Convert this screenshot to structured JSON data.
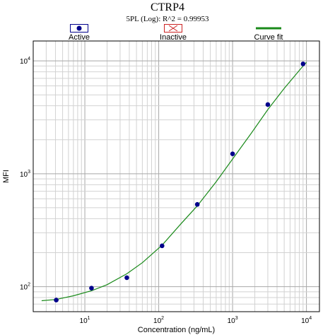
{
  "chart_data": {
    "type": "scatter",
    "title": "CTRP4",
    "subtitle": "5PL (Log): R^2 = 0.99953",
    "xlabel": "Concentration (ng/mL)",
    "ylabel": "MFI",
    "x_scale": "log",
    "y_scale": "log",
    "xlim": [
      2,
      15000
    ],
    "ylim": [
      60,
      15000
    ],
    "x_ticks": [
      10,
      100,
      1000,
      10000
    ],
    "y_ticks": [
      100,
      1000,
      10000
    ],
    "grid": true,
    "legend": {
      "placement": "top",
      "entries": [
        {
          "label": "Active",
          "marker": "filled-circle",
          "color": "#00008b"
        },
        {
          "label": "Inactive",
          "marker": "crossed-box",
          "color": "#cc2222"
        },
        {
          "label": "Curve fit",
          "marker": "line",
          "color": "#1a8a1a"
        }
      ]
    },
    "series": [
      {
        "name": "Active",
        "type": "scatter",
        "color": "#00008b",
        "x": [
          4.1,
          12.3,
          37.0,
          111,
          333,
          1000,
          3000,
          9000
        ],
        "y": [
          76,
          97,
          120,
          230,
          535,
          1500,
          4100,
          9400
        ]
      },
      {
        "name": "Curve fit",
        "type": "line",
        "color": "#1a8a1a",
        "x": [
          2.6,
          4.1,
          7,
          12.3,
          20,
          37.0,
          60,
          111,
          200,
          333,
          600,
          1000,
          1800,
          3000,
          5000,
          9000,
          10000
        ],
        "y": [
          75,
          77,
          83,
          92,
          104,
          130,
          163,
          233,
          360,
          520,
          850,
          1350,
          2300,
          3700,
          5700,
          9000,
          9700
        ]
      }
    ]
  }
}
